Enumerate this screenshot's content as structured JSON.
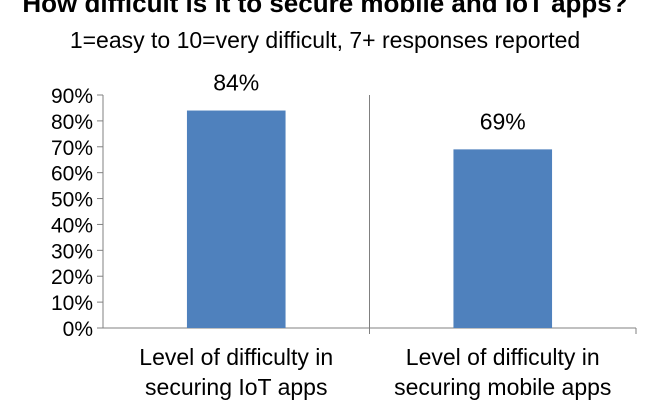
{
  "title": "How difficult is it to secure mobile and IoT apps?",
  "subtitle": "1=easy to 10=very difficult, 7+ responses reported",
  "chart_data": {
    "type": "bar",
    "categories": [
      "Level of difficulty in securing IoT apps",
      "Level of difficulty in securing mobile apps"
    ],
    "category_lines": [
      [
        "Level of difficulty in",
        "securing IoT apps"
      ],
      [
        "Level of difficulty in",
        "securing mobile apps"
      ]
    ],
    "values": [
      84,
      69
    ],
    "data_labels": [
      "84%",
      "69%"
    ],
    "ylim": [
      0,
      90
    ],
    "yticks": [
      0,
      10,
      20,
      30,
      40,
      50,
      60,
      70,
      80,
      90
    ],
    "ytick_labels": [
      "0%",
      "10%",
      "20%",
      "30%",
      "40%",
      "50%",
      "60%",
      "70%",
      "80%",
      "90%"
    ],
    "bar_color": "#4f81bd",
    "grid": false,
    "category_separators": true
  }
}
